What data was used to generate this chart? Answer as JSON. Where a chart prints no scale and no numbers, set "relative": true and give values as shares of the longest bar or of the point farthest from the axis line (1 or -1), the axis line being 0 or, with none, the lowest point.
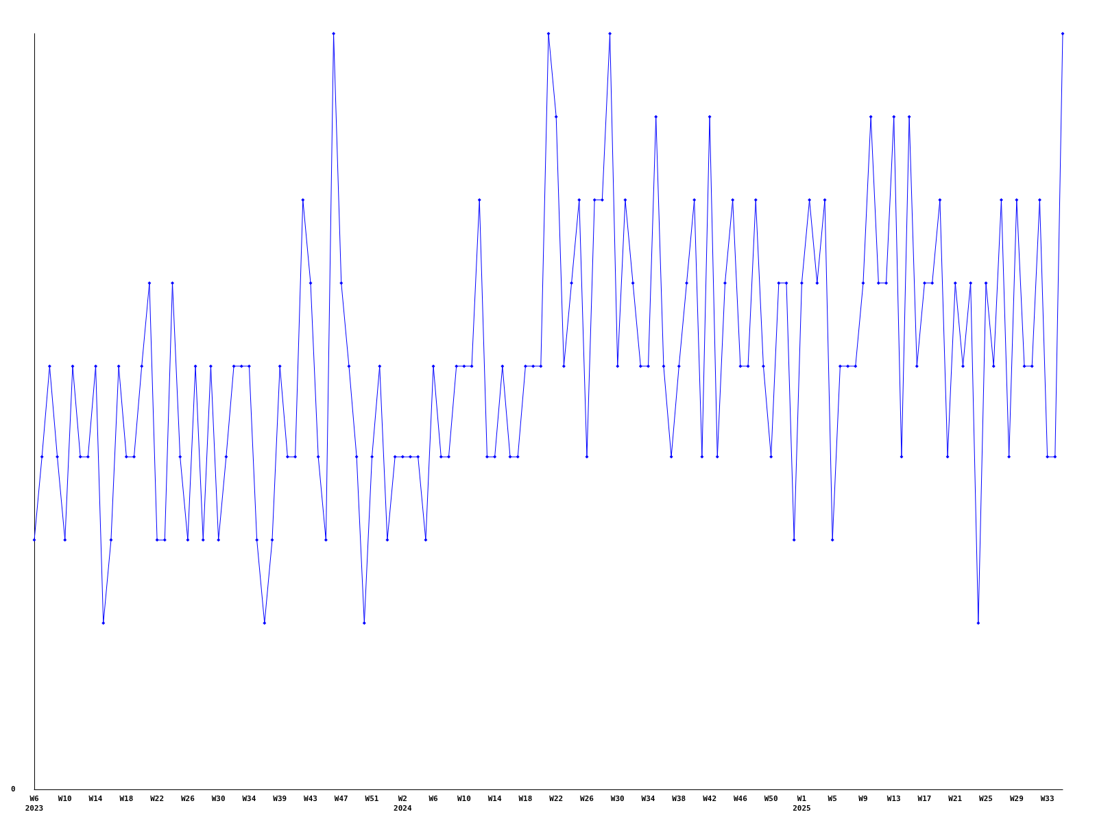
{
  "chart_data": {
    "type": "line",
    "relative": true,
    "marker": "diamond",
    "line_style": "solid",
    "annotations": [
      "0"
    ],
    "categories": [
      "W6\n2023",
      null,
      null,
      null,
      "W10",
      null,
      null,
      null,
      "W14",
      null,
      null,
      null,
      "W18",
      null,
      null,
      null,
      "W22",
      null,
      null,
      null,
      "W26",
      null,
      null,
      null,
      "W30",
      null,
      null,
      null,
      "W34",
      null,
      null,
      null,
      "W39",
      null,
      null,
      null,
      "W43",
      null,
      null,
      null,
      "W47",
      null,
      null,
      null,
      "W51",
      null,
      null,
      null,
      "W2\n2024",
      null,
      null,
      null,
      "W6",
      null,
      null,
      null,
      "W10",
      null,
      null,
      null,
      "W14",
      null,
      null,
      null,
      "W18",
      null,
      null,
      null,
      "W22",
      null,
      null,
      null,
      "W26",
      null,
      null,
      null,
      "W30",
      null,
      null,
      null,
      "W34",
      null,
      null,
      null,
      "W38",
      null,
      null,
      null,
      "W42",
      null,
      null,
      null,
      "W46",
      null,
      null,
      null,
      "W50",
      null,
      null,
      null,
      "W1\n2025",
      null,
      null,
      null,
      "W5",
      null,
      null,
      null,
      "W9",
      null,
      null,
      null,
      "W13",
      null,
      null,
      null,
      "W17",
      null,
      null,
      null,
      "W21",
      null,
      null,
      null,
      "W25",
      null,
      null,
      null,
      "W29",
      null,
      null,
      null,
      "W33",
      null,
      null
    ],
    "series": [
      {
        "color": "#0000ff",
        "values": [
          0.33,
          0.44,
          0.56,
          0.44,
          0.33,
          0.56,
          0.44,
          0.44,
          0.56,
          0.22,
          0.33,
          0.56,
          0.44,
          0.44,
          0.56,
          0.67,
          0.33,
          0.33,
          0.67,
          0.44,
          0.33,
          0.56,
          0.33,
          0.56,
          0.33,
          0.44,
          0.56,
          0.56,
          0.56,
          0.33,
          0.22,
          0.33,
          0.56,
          0.44,
          0.44,
          0.78,
          0.67,
          0.44,
          0.33,
          1,
          0.67,
          0.56,
          0.44,
          0.22,
          0.44,
          0.56,
          0.33,
          0.44,
          0.44,
          0.44,
          0.44,
          0.33,
          0.56,
          0.44,
          0.44,
          0.56,
          0.56,
          0.56,
          0.78,
          0.44,
          0.44,
          0.56,
          0.44,
          0.44,
          0.56,
          0.56,
          0.56,
          1,
          0.89,
          0.56,
          0.67,
          0.78,
          0.44,
          0.78,
          0.78,
          1,
          0.56,
          0.78,
          0.67,
          0.56,
          0.56,
          0.89,
          0.56,
          0.44,
          0.56,
          0.67,
          0.78,
          0.44,
          0.89,
          0.44,
          0.67,
          0.78,
          0.56,
          0.56,
          0.78,
          0.56,
          0.44,
          0.67,
          0.67,
          0.33,
          0.67,
          0.78,
          0.67,
          0.78,
          0.33,
          0.56,
          0.56,
          0.56,
          0.67,
          0.89,
          0.67,
          0.67,
          0.89,
          0.44,
          0.89,
          0.56,
          0.67,
          0.67,
          0.78,
          0.44,
          0.67,
          0.56,
          0.67,
          0.22,
          0.67,
          0.56,
          0.78,
          0.44,
          0.78,
          0.56,
          0.56,
          0.78,
          0.44,
          0.44,
          1
        ]
      }
    ]
  }
}
